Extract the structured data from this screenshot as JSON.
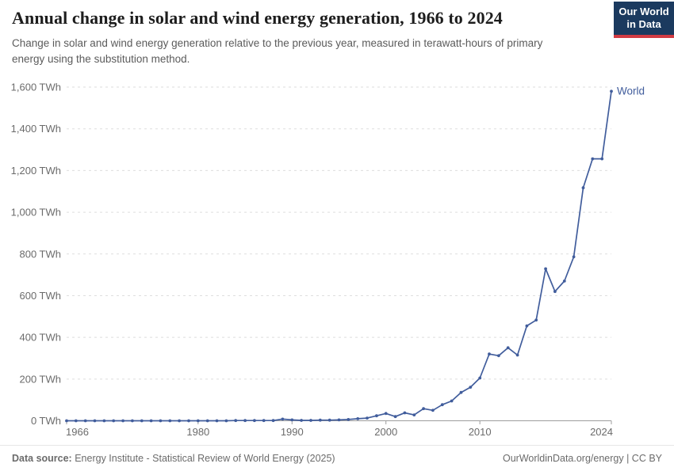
{
  "header": {
    "title": "Annual change in solar and wind energy generation, 1966 to 2024",
    "subtitle": "Change in solar and wind energy generation relative to the previous year, measured in terawatt-hours of primary energy using the substitution method.",
    "logo_line1": "Our World",
    "logo_line2": "in Data"
  },
  "footer": {
    "datasource_label": "Data source:",
    "datasource_value": " Energy Institute - Statistical Review of World Energy (2025)",
    "credit": "OurWorldinData.org/energy | CC BY"
  },
  "colors": {
    "line": "#415d9c",
    "grid": "#dedede",
    "axis": "#9d9d9d",
    "tick_text": "#6b6b6b",
    "logo_navy": "#1b3a5f",
    "logo_red": "#d23b43"
  },
  "chart_data": {
    "type": "line",
    "title": "Annual change in solar and wind energy generation, 1966 to 2024",
    "xlabel": "",
    "ylabel": "",
    "xlim": [
      1966,
      2024
    ],
    "ylim": [
      0,
      1600
    ],
    "grid": "dashed-horizontal",
    "legend_position": "end-of-line-label",
    "end_label": "World",
    "y_ticks": [
      {
        "value": 0,
        "label": "0 TWh"
      },
      {
        "value": 200,
        "label": "200 TWh"
      },
      {
        "value": 400,
        "label": "400 TWh"
      },
      {
        "value": 600,
        "label": "600 TWh"
      },
      {
        "value": 800,
        "label": "800 TWh"
      },
      {
        "value": 1000,
        "label": "1,000 TWh"
      },
      {
        "value": 1200,
        "label": "1,200 TWh"
      },
      {
        "value": 1400,
        "label": "1,400 TWh"
      },
      {
        "value": 1600,
        "label": "1,600 TWh"
      }
    ],
    "x_ticks": [
      {
        "value": 1966,
        "label": "1966"
      },
      {
        "value": 1980,
        "label": "1980"
      },
      {
        "value": 1990,
        "label": "1990"
      },
      {
        "value": 2000,
        "label": "2000"
      },
      {
        "value": 2010,
        "label": "2010"
      },
      {
        "value": 2024,
        "label": "2024"
      }
    ],
    "series": [
      {
        "name": "World",
        "x": [
          1966,
          1967,
          1968,
          1969,
          1970,
          1971,
          1972,
          1973,
          1974,
          1975,
          1976,
          1977,
          1978,
          1979,
          1980,
          1981,
          1982,
          1983,
          1984,
          1985,
          1986,
          1987,
          1988,
          1989,
          1990,
          1991,
          1992,
          1993,
          1994,
          1995,
          1996,
          1997,
          1998,
          1999,
          2000,
          2001,
          2002,
          2003,
          2004,
          2005,
          2006,
          2007,
          2008,
          2009,
          2010,
          2011,
          2012,
          2013,
          2014,
          2015,
          2016,
          2017,
          2018,
          2019,
          2020,
          2021,
          2022,
          2023,
          2024
        ],
        "values": [
          0,
          0,
          0,
          0,
          0,
          0,
          0,
          0,
          0,
          0,
          0,
          0,
          0,
          0,
          0,
          0,
          0,
          0,
          1,
          1,
          1,
          1,
          1,
          8,
          4,
          2,
          2,
          3,
          3,
          4,
          6,
          10,
          13,
          24,
          35,
          20,
          38,
          28,
          58,
          50,
          77,
          95,
          136,
          161,
          205,
          320,
          312,
          350,
          315,
          455,
          483,
          729,
          620,
          670,
          786,
          1117,
          1256,
          1256,
          1580
        ]
      }
    ]
  }
}
